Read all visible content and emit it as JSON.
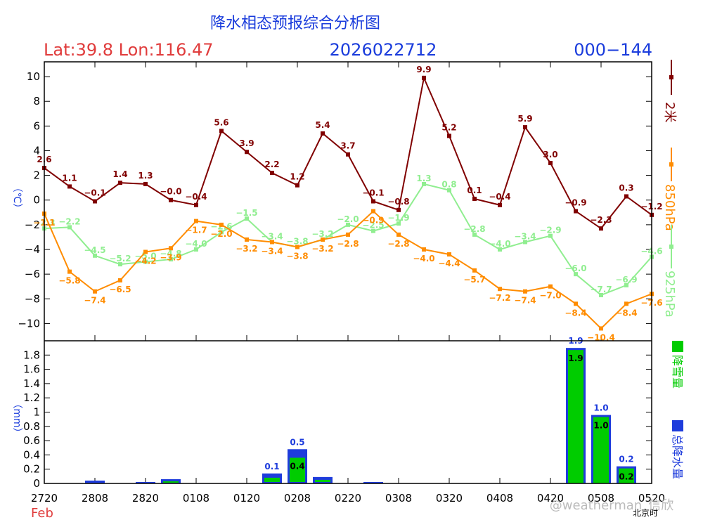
{
  "header": {
    "title": "降水相态预报综合分析图",
    "location": "Lat:39.8  Lon:116.47",
    "init_time": "2026022712",
    "forecast_range": "000−144"
  },
  "colors": {
    "title": "#1a3cdc",
    "location": "#e03c3c",
    "t2m": "#800000",
    "t850": "#ff8c00",
    "t925": "#90ee90",
    "snow": "#00cc00",
    "total": "#1e3cdc",
    "month": "#e03c3c"
  },
  "chart_data": [
    {
      "type": "line",
      "ylabel": "（℃）",
      "ylim": [
        -11.4,
        11.2
      ],
      "yticks": [
        10,
        8,
        6,
        4,
        2,
        0,
        -2,
        -4,
        -6,
        -8,
        -10
      ],
      "x": [
        0,
        1,
        2,
        3,
        4,
        5,
        6,
        7,
        8,
        9,
        10,
        11,
        12,
        13,
        14,
        15,
        16,
        17,
        18,
        19,
        20,
        21,
        22,
        23,
        24
      ],
      "series": [
        {
          "name": "2米",
          "key": "t2m",
          "values": [
            2.6,
            1.1,
            -0.1,
            1.4,
            1.3,
            -0.0,
            -0.4,
            5.6,
            3.9,
            2.2,
            1.2,
            5.4,
            3.7,
            -0.1,
            -0.8,
            9.9,
            5.2,
            0.1,
            -0.4,
            5.9,
            3.0,
            -0.9,
            -2.3,
            0.3,
            -1.2
          ]
        },
        {
          "name": "850hPa",
          "key": "t850",
          "values": [
            -1.1,
            -5.8,
            -7.4,
            -6.5,
            -4.2,
            -3.9,
            -1.7,
            -2.0,
            -3.2,
            -3.4,
            -3.8,
            -3.2,
            -2.8,
            -0.9,
            -2.8,
            -4.0,
            -4.4,
            -5.7,
            -7.2,
            -7.4,
            -7.0,
            -8.4,
            -10.4,
            -8.4,
            -7.6
          ]
        },
        {
          "name": "925hPa",
          "key": "t925",
          "values": [
            -2.3,
            -2.2,
            -4.5,
            -5.2,
            -5.0,
            -4.8,
            -4.0,
            -2.6,
            -1.5,
            -3.4,
            -3.8,
            -3.2,
            -2.0,
            -2.5,
            -1.9,
            1.3,
            0.8,
            -2.8,
            -4.0,
            -3.4,
            -2.9,
            -6.0,
            -7.7,
            -6.9,
            -4.6
          ]
        }
      ],
      "label_texts": {
        "t2m": [
          "2.6",
          "1.1",
          "−0.1",
          "1.4",
          "1.3",
          "−0.0",
          "−0.4",
          "5.6",
          "3.9",
          "2.2",
          "1.2",
          "5.4",
          "3.7",
          "−0.1",
          "−0.8",
          "9.9",
          "5.2",
          "0.1",
          "−0.4",
          "5.9",
          "3.0",
          "−0.9",
          "−2.3",
          "0.3",
          "−1.2"
        ],
        "t850": [
          "−1.1",
          "−5.8",
          "−7.4",
          "−6.5",
          "−4.2",
          "−3.9",
          "−1.7",
          "−2.0",
          "−3.2",
          "−3.4",
          "−3.8",
          "−3.2",
          "−2.8",
          "−0.9",
          "−2.8",
          "−4.0",
          "−4.4",
          "−5.7",
          "−7.2",
          "−7.4",
          "−7.0",
          "−8.4",
          "−10.4",
          "−8.4",
          "−7.6"
        ],
        "t925": [
          "−2.3",
          "−2.2",
          "−4.5",
          "−5.2",
          "−5.0",
          "−4.8",
          "−4.0",
          "−2.6",
          "−1.5",
          "−3.4",
          "−3.8",
          "−3.2",
          "−2.0",
          "−2.5",
          "−1.9",
          "1.3",
          "0.8",
          "−2.8",
          "−4.0",
          "−3.4",
          "−2.9",
          "−6.0",
          "−7.7",
          "−6.9",
          "−4.6"
        ]
      },
      "legend": [
        "2米",
        "850hPa",
        "925hPa"
      ],
      "legend_position": "right"
    },
    {
      "type": "bar",
      "ylabel": "（mm）",
      "ylim": [
        0,
        2.0
      ],
      "yticks": [
        "1.8",
        "1.6",
        "1.4",
        "1.2",
        "1",
        "0.8",
        "0.6",
        "0.4",
        "0.2",
        "0"
      ],
      "ytick_values": [
        1.8,
        1.6,
        1.4,
        1.2,
        1.0,
        0.8,
        0.6,
        0.4,
        0.2,
        0
      ],
      "xticks": [
        "2720",
        "2808",
        "2820",
        "0108",
        "0120",
        "0208",
        "0220",
        "0308",
        "0320",
        "0408",
        "0420",
        "0508",
        "0520"
      ],
      "xlabel": "北京时",
      "month_label": "Feb",
      "bars": [
        {
          "x": 2,
          "total": 0.04,
          "snow": 0.0
        },
        {
          "x": 4,
          "total": 0.02,
          "snow": 0.01
        },
        {
          "x": 5,
          "total": 0.06,
          "snow": 0.04
        },
        {
          "x": 9,
          "total": 0.14,
          "snow": 0.08,
          "total_label": "0.1"
        },
        {
          "x": 10,
          "total": 0.48,
          "snow": 0.36,
          "total_label": "0.5",
          "snow_label": "0.4"
        },
        {
          "x": 11,
          "total": 0.09,
          "snow": 0.05
        },
        {
          "x": 13,
          "total": 0.02,
          "snow": 0.01
        },
        {
          "x": 21,
          "total": 1.9,
          "snow": 1.9,
          "total_label": "1.9",
          "snow_label": "1.9"
        },
        {
          "x": 22,
          "total": 0.96,
          "snow": 0.96,
          "total_label": "1.0",
          "snow_label": "1.0"
        },
        {
          "x": 23,
          "total": 0.24,
          "snow": 0.24,
          "total_label": "0.2",
          "snow_label": "0.2"
        }
      ],
      "legend": [
        "降雪量",
        "总降水量"
      ],
      "legend_position": "right"
    }
  ],
  "watermark": "@weatherman_信欣"
}
